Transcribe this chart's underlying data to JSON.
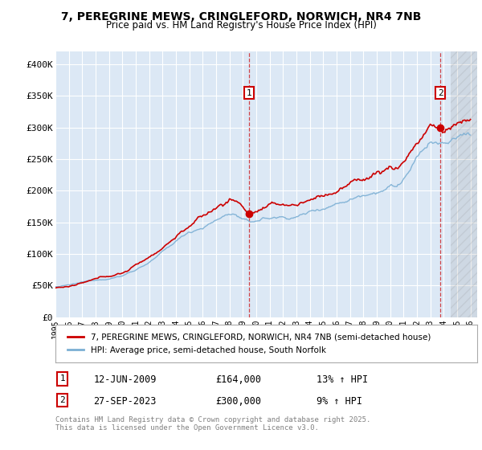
{
  "title_line1": "7, PEREGRINE MEWS, CRINGLEFORD, NORWICH, NR4 7NB",
  "title_line2": "Price paid vs. HM Land Registry's House Price Index (HPI)",
  "ylabel_ticks": [
    "£0",
    "£50K",
    "£100K",
    "£150K",
    "£200K",
    "£250K",
    "£300K",
    "£350K",
    "£400K"
  ],
  "ytick_values": [
    0,
    50000,
    100000,
    150000,
    200000,
    250000,
    300000,
    350000,
    400000
  ],
  "ylim": [
    0,
    420000
  ],
  "xlim_start": 1995.0,
  "xlim_end": 2026.5,
  "property_color": "#cc0000",
  "hpi_color": "#7bafd4",
  "sale1_date": "12-JUN-2009",
  "sale1_price": 164000,
  "sale1_hpi_pct": "13%",
  "sale1_x": 2009.458,
  "sale2_date": "27-SEP-2023",
  "sale2_price": 300000,
  "sale2_hpi_pct": "9%",
  "sale2_x": 2023.75,
  "legend_property_label": "7, PEREGRINE MEWS, CRINGLEFORD, NORWICH, NR4 7NB (semi-detached house)",
  "legend_hpi_label": "HPI: Average price, semi-detached house, South Norfolk",
  "footnote": "Contains HM Land Registry data © Crown copyright and database right 2025.\nThis data is licensed under the Open Government Licence v3.0.",
  "plot_bg_color": "#dce8f5",
  "grid_color": "#ffffff",
  "hatch_start": 2024.5
}
